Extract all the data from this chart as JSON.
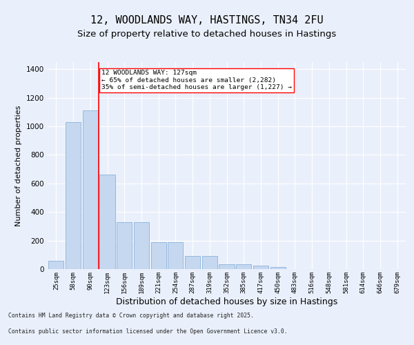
{
  "title": "12, WOODLANDS WAY, HASTINGS, TN34 2FU",
  "subtitle": "Size of property relative to detached houses in Hastings",
  "xlabel": "Distribution of detached houses by size in Hastings",
  "ylabel": "Number of detached properties",
  "categories": [
    "25sqm",
    "58sqm",
    "90sqm",
    "123sqm",
    "156sqm",
    "189sqm",
    "221sqm",
    "254sqm",
    "287sqm",
    "319sqm",
    "352sqm",
    "385sqm",
    "417sqm",
    "450sqm",
    "483sqm",
    "516sqm",
    "548sqm",
    "581sqm",
    "614sqm",
    "646sqm",
    "679sqm"
  ],
  "values": [
    60,
    1030,
    1110,
    660,
    330,
    330,
    190,
    190,
    90,
    90,
    35,
    35,
    25,
    15,
    0,
    0,
    0,
    0,
    0,
    0,
    0
  ],
  "bar_color": "#c5d8f0",
  "bar_edge_color": "#7aa8d4",
  "vline_x": 2.5,
  "vline_color": "red",
  "annotation_text": "12 WOODLANDS WAY: 127sqm\n← 65% of detached houses are smaller (2,282)\n35% of semi-detached houses are larger (1,227) →",
  "annotation_box_color": "white",
  "annotation_box_edge_color": "red",
  "ylim": [
    0,
    1450
  ],
  "yticks": [
    0,
    200,
    400,
    600,
    800,
    1000,
    1200,
    1400
  ],
  "background_color": "#eaf0fb",
  "plot_background_color": "#eaf0fb",
  "footer_line1": "Contains HM Land Registry data © Crown copyright and database right 2025.",
  "footer_line2": "Contains public sector information licensed under the Open Government Licence v3.0.",
  "title_fontsize": 11,
  "subtitle_fontsize": 9.5,
  "xlabel_fontsize": 9,
  "ylabel_fontsize": 8
}
